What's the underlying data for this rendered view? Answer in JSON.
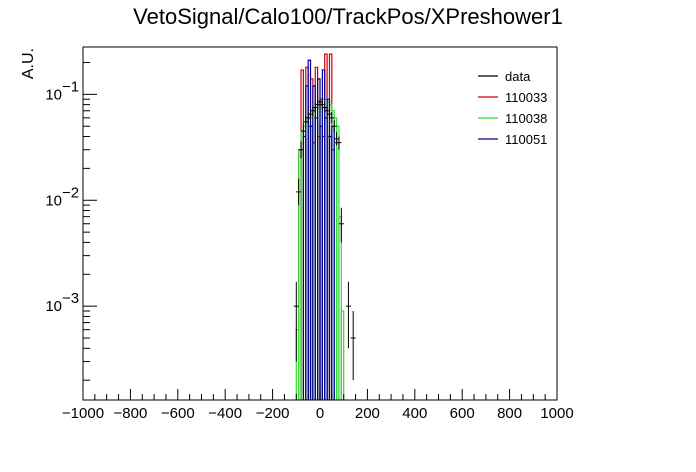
{
  "chart_data": {
    "type": "histogram",
    "title": "VetoSignal/Calo100/TrackPos/XPreshower1",
    "ylabel": "A.U.",
    "xlabel": "",
    "xlim": [
      -1000,
      1000
    ],
    "ylim": [
      0.00013,
      0.28
    ],
    "log_y": true,
    "grid": false,
    "legend_position": "top-right",
    "x_ticks": [
      -1000,
      -800,
      -600,
      -400,
      -200,
      0,
      200,
      400,
      600,
      800,
      1000
    ],
    "x_tick_labels": [
      "−1000",
      "−800",
      "−600",
      "−400",
      "−200",
      "0",
      "200",
      "400",
      "600",
      "800",
      "1000"
    ],
    "y_ticks": [
      0.001,
      0.01,
      0.1
    ],
    "y_tick_labels": [
      {
        "base": "10",
        "exp": "−3"
      },
      {
        "base": "10",
        "exp": "−2"
      },
      {
        "base": "10",
        "exp": "−1"
      }
    ],
    "bin_edges": [
      -100,
      -90,
      -80,
      -70,
      -60,
      -50,
      -40,
      -30,
      -20,
      -10,
      0,
      10,
      20,
      30,
      40,
      50,
      60,
      70,
      80,
      90,
      100
    ],
    "series": [
      {
        "name": "110033",
        "color": "#cc0000",
        "style": "step",
        "values": [
          null,
          0.03,
          0.17,
          0.045,
          0.18,
          0.05,
          0.14,
          0.035,
          0.18,
          0.04,
          0.09,
          0.04,
          0.24,
          0.04,
          0.24,
          0.03,
          0.035,
          null,
          null,
          null
        ]
      },
      {
        "name": "110038",
        "color": "#33dd33",
        "style": "step",
        "values": [
          0.0006,
          0.03,
          0.045,
          0.05,
          0.06,
          0.065,
          0.07,
          0.075,
          0.08,
          0.085,
          0.085,
          0.09,
          0.09,
          0.085,
          0.08,
          0.07,
          0.06,
          0.05,
          0.007,
          0.0009
        ]
      },
      {
        "name": "110051",
        "color": "#000099",
        "style": "step",
        "values": [
          null,
          null,
          null,
          0.04,
          0.12,
          0.21,
          0.05,
          0.12,
          0.06,
          0.14,
          0.05,
          0.17,
          0.06,
          0.09,
          0.04,
          0.05,
          null,
          null,
          null,
          null
        ]
      },
      {
        "name": "data",
        "color": "#000000",
        "style": "points",
        "points": [
          {
            "x": -100,
            "y": 0.001,
            "err": [
              0.0003,
              0.0017
            ]
          },
          {
            "x": -90,
            "y": 0.012,
            "err": [
              0.009,
              0.016
            ]
          },
          {
            "x": -80,
            "y": 0.03,
            "err": [
              0.025,
              0.036
            ]
          },
          {
            "x": -70,
            "y": 0.045,
            "err": [
              0.039,
              0.052
            ]
          },
          {
            "x": -60,
            "y": 0.055,
            "err": [
              0.048,
              0.062
            ]
          },
          {
            "x": -50,
            "y": 0.06,
            "err": [
              0.053,
              0.068
            ]
          },
          {
            "x": -40,
            "y": 0.065,
            "err": [
              0.058,
              0.073
            ]
          },
          {
            "x": -30,
            "y": 0.07,
            "err": [
              0.062,
              0.078
            ]
          },
          {
            "x": -20,
            "y": 0.075,
            "err": [
              0.067,
              0.084
            ]
          },
          {
            "x": -10,
            "y": 0.08,
            "err": [
              0.071,
              0.09
            ]
          },
          {
            "x": 0,
            "y": 0.085,
            "err": [
              0.076,
              0.095
            ]
          },
          {
            "x": 10,
            "y": 0.08,
            "err": [
              0.071,
              0.09
            ]
          },
          {
            "x": 20,
            "y": 0.075,
            "err": [
              0.067,
              0.084
            ]
          },
          {
            "x": 30,
            "y": 0.07,
            "err": [
              0.062,
              0.078
            ]
          },
          {
            "x": 40,
            "y": 0.065,
            "err": [
              0.058,
              0.073
            ]
          },
          {
            "x": 50,
            "y": 0.06,
            "err": [
              0.053,
              0.068
            ]
          },
          {
            "x": 60,
            "y": 0.05,
            "err": [
              0.044,
              0.057
            ]
          },
          {
            "x": 70,
            "y": 0.038,
            "err": [
              0.033,
              0.044
            ]
          },
          {
            "x": 80,
            "y": 0.035,
            "err": [
              0.03,
              0.04
            ]
          },
          {
            "x": 90,
            "y": 0.006,
            "err": [
              0.004,
              0.0085
            ]
          },
          {
            "x": 120,
            "y": 0.001,
            "err": [
              0.0004,
              0.0017
            ]
          },
          {
            "x": 140,
            "y": 0.0005,
            "err": [
              0.0002,
              0.0009
            ]
          }
        ]
      }
    ],
    "legend": [
      {
        "label": "data",
        "color": "#000000"
      },
      {
        "label": "110033",
        "color": "#cc0000"
      },
      {
        "label": "110038",
        "color": "#33dd33"
      },
      {
        "label": "110051",
        "color": "#000099"
      }
    ]
  }
}
